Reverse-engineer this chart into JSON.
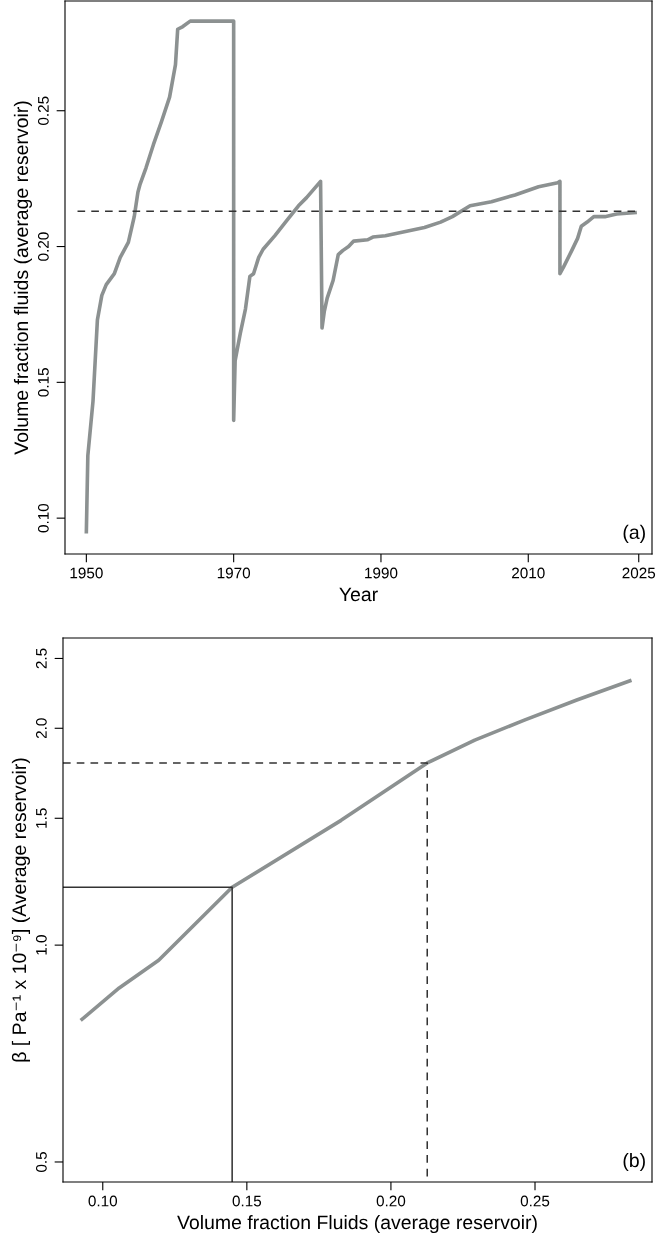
{
  "chart_data": [
    {
      "type": "line",
      "xlabel": "Year",
      "ylabel": "Volume fraction fluids (average reservoir)",
      "annotations": [
        "(a)"
      ],
      "xlim": [
        1947.1,
        2026.8
      ],
      "ylim": [
        0.0868,
        0.2904
      ],
      "xticks": [
        1950,
        1970,
        1990,
        2010,
        2025
      ],
      "yticks": [
        {
          "value": 0.1,
          "label": "0.10"
        },
        {
          "value": 0.15,
          "label": "0.15"
        },
        {
          "value": 0.2,
          "label": "0.20"
        },
        {
          "value": 0.25,
          "label": "0.25"
        }
      ],
      "grid": false,
      "legend": false,
      "series": [
        {
          "color": "#8c9191",
          "line_style": "solid",
          "x": [
            1950,
            1950.2,
            1950.9,
            1951.5,
            1952.1,
            1952.7,
            1953.8,
            1954.6,
            1955.7,
            1956.5,
            1957.0,
            1957.3,
            1958.1,
            1959.1,
            1960.2,
            1961.3,
            1962.1,
            1962.4,
            1963.1,
            1964.1,
            1970.0,
            1970.0,
            1970.2,
            1970.9,
            1971.6,
            1972.2,
            1972.7,
            1973.4,
            1974.0,
            1975.6,
            1977.2,
            1978.8,
            1979.9,
            1981.8,
            1982.0,
            1982.3,
            1982.7,
            1983.5,
            1984.2,
            1984.8,
            1985.6,
            1986.3,
            1988.2,
            1988.9,
            1990.6,
            1995.9,
            1998.1,
            1999.7,
            2002.1,
            2005.0,
            2008.2,
            2011.4,
            2014.0,
            2014.3,
            2014.3,
            2014.8,
            2015.9,
            2016.7,
            2017.2,
            2018.0,
            2018.9,
            2020.4,
            2022.0,
            2024.5
          ],
          "values": [
            0.095,
            0.123,
            0.143,
            0.173,
            0.182,
            0.186,
            0.19,
            0.196,
            0.2015,
            0.211,
            0.22,
            0.223,
            0.229,
            0.2375,
            0.246,
            0.255,
            0.267,
            0.28,
            0.281,
            0.283,
            0.283,
            0.136,
            0.158,
            0.168,
            0.177,
            0.189,
            0.19,
            0.196,
            0.199,
            0.204,
            0.2095,
            0.215,
            0.218,
            0.224,
            0.17,
            0.176,
            0.181,
            0.1875,
            0.197,
            0.1985,
            0.2,
            0.202,
            0.2025,
            0.2035,
            0.204,
            0.207,
            0.209,
            0.211,
            0.215,
            0.2165,
            0.219,
            0.222,
            0.2235,
            0.224,
            0.19,
            0.1925,
            0.1985,
            0.203,
            0.2075,
            0.209,
            0.211,
            0.211,
            0.212,
            0.2125
          ]
        },
        {
          "color": "#333333",
          "line_style": "dashed",
          "x": [
            1948.8,
            2024.5
          ],
          "values": [
            0.213,
            0.213
          ]
        }
      ]
    },
    {
      "type": "line",
      "xlabel": "Volume fraction Fluids (average reservoir)",
      "ylabel": "β [ Pa⁻¹ x 10⁻⁹] (Average reservoir)",
      "annotations": [
        "(b)"
      ],
      "log": "y",
      "xlim": [
        0.0862,
        0.2906
      ],
      "ylim": [
        0.469,
        2.669
      ],
      "xticks": [
        {
          "value": 0.1,
          "label": "0.10"
        },
        {
          "value": 0.15,
          "label": "0.15"
        },
        {
          "value": 0.2,
          "label": "0.20"
        },
        {
          "value": 0.25,
          "label": "0.25"
        }
      ],
      "yticks": [
        {
          "value": 0.5,
          "label": "0.5"
        },
        {
          "value": 1.0,
          "label": "1.0"
        },
        {
          "value": 1.5,
          "label": "1.5"
        },
        {
          "value": 2.0,
          "label": "2.0"
        },
        {
          "value": 2.5,
          "label": "2.5"
        }
      ],
      "grid": false,
      "legend": false,
      "series": [
        {
          "color": "#8c9191",
          "line_style": "solid",
          "x": [
            0.0928,
            0.1057,
            0.1194,
            0.1449,
            0.1827,
            0.2126,
            0.2291,
            0.2463,
            0.2645,
            0.2829
          ],
          "values": [
            0.789,
            0.872,
            0.953,
            1.203,
            1.49,
            1.79,
            1.926,
            2.053,
            2.189,
            2.327
          ]
        },
        {
          "color": "#333333",
          "line_style": "solid",
          "x": [
            0.0862,
            0.1449,
            0.1449
          ],
          "values": [
            1.203,
            1.203,
            0.469
          ]
        },
        {
          "color": "#333333",
          "line_style": "dashed",
          "x": [
            0.0862,
            0.2126,
            0.2126
          ],
          "values": [
            1.79,
            1.79,
            0.469
          ]
        }
      ]
    }
  ]
}
